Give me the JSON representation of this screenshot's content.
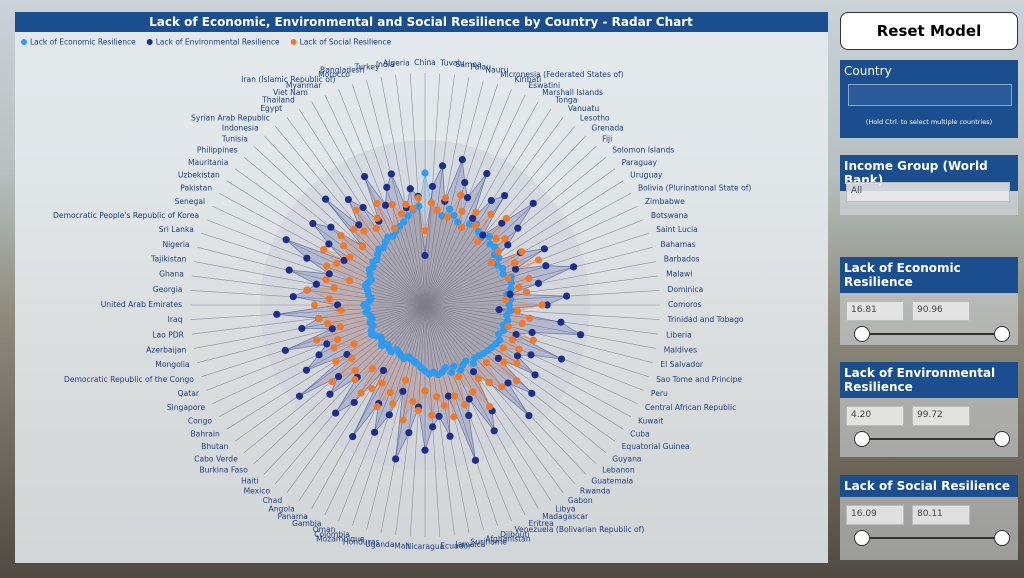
{
  "chart_data": {
    "type": "radar",
    "title": "Lack of Economic, Environmental and Social Resilience by Country - Radar Chart",
    "legend": "top-left",
    "rlim": [
      0,
      100
    ],
    "categories": [
      "China",
      "Tuvalu",
      "Samoa",
      "Palau",
      "Nauru",
      "Micronesia (Federated States of)",
      "Kiribati",
      "Eswatini",
      "Marshall Islands",
      "Tonga",
      "Vanuatu",
      "Lesotho",
      "Grenada",
      "Fiji",
      "Solomon Islands",
      "Paraguay",
      "Uruguay",
      "Bolivia (Plurinational State of)",
      "Zimbabwe",
      "Botswana",
      "Saint Lucia",
      "Bahamas",
      "Barbados",
      "Malawi",
      "Dominica",
      "Comoros",
      "Trinidad and Tobago",
      "Liberia",
      "Maldives",
      "El Salvador",
      "Sao Tome and Principe",
      "Peru",
      "Central African Republic",
      "Kuwait",
      "Cuba",
      "Equatorial Guinea",
      "Guyana",
      "Lebanon",
      "Guatemala",
      "Rwanda",
      "Gabon",
      "Libya",
      "Madagascar",
      "Eritrea",
      "Venezuela (Bolivarian Republic of)",
      "Djibouti",
      "Afghanistan",
      "Suriname",
      "Jamaica",
      "Ecuador",
      "Nicaragua",
      "Mali",
      "Uganda",
      "Honduras",
      "Mozambique",
      "Colombia",
      "Oman",
      "Gambia",
      "Panama",
      "Angola",
      "Chad",
      "Mexico",
      "Haiti",
      "Burkina Faso",
      "Cabo Verde",
      "Bhutan",
      "Bahrain",
      "Congo",
      "Singapore",
      "Qatar",
      "Democratic Republic of the Congo",
      "Mongolia",
      "Azerbaijan",
      "Lao PDR",
      "Iraq",
      "United Arab Emirates",
      "Georgia",
      "Ghana",
      "Tajikistan",
      "Nigeria",
      "Sri Lanka",
      "Democratic People's Republic of Korea",
      "Senegal",
      "Pakistan",
      "Uzbekistan",
      "Mauritania",
      "Philippines",
      "Tunisia",
      "Indonesia",
      "Syrian Arab Republic",
      "Egypt",
      "Thailand",
      "Viet Nam",
      "Myanmar",
      "Iran (Islamic Republic of)",
      "Morocco",
      "Bangladesh",
      "Turkey",
      "India",
      "Algeria"
    ],
    "series": [
      {
        "name": "Lack of Economic Resilience",
        "color": "#2e9bf0",
        "values": [
          80,
          62,
          58,
          55,
          60,
          57,
          54,
          52,
          56,
          58,
          55,
          53,
          57,
          54,
          55,
          52,
          53,
          50,
          52,
          51,
          55,
          54,
          53,
          50,
          52,
          51,
          52,
          50,
          51,
          49,
          50,
          48,
          50,
          49,
          48,
          47,
          46,
          45,
          44,
          46,
          42,
          43,
          45,
          41,
          44,
          40,
          42,
          43,
          41,
          42,
          40,
          38,
          36,
          35,
          34,
          33,
          35,
          34,
          33,
          32,
          35,
          34,
          33,
          36,
          34,
          33,
          35,
          37,
          36,
          34,
          35,
          33,
          34,
          36,
          35,
          37,
          34,
          33,
          35,
          36,
          38,
          37,
          36,
          38,
          40,
          39,
          41,
          40,
          42,
          44,
          43,
          45,
          47,
          46,
          48,
          50,
          52,
          55,
          58,
          60
        ]
      },
      {
        "name": "Lack of Environmental Resilience",
        "color": "#1c2e8c",
        "values": [
          30,
          72,
          85,
          64,
          91,
          78,
          70,
          88,
          60,
          75,
          82,
          55,
          68,
          90,
          73,
          62,
          48,
          66,
          80,
          59,
          77,
          93,
          70,
          52,
          86,
          74,
          45,
          83,
          96,
          67,
          58,
          89,
          71,
          64,
          79,
          55,
          84,
          69,
          92,
          61,
          50,
          76,
          87,
          63,
          72,
          99,
          57,
          81,
          68,
          74,
          88,
          62,
          78,
          95,
          54,
          70,
          83,
          66,
          91,
          47,
          73,
          85,
          60,
          79,
          68,
          94,
          56,
          82,
          71,
          64,
          89,
          58,
          76,
          65,
          90,
          53,
          80,
          72,
          67,
          85,
          61,
          77,
          93,
          56,
          69,
          84,
          74,
          52,
          88,
          63,
          79,
          70,
          58,
          86,
          65,
          75,
          82,
          60,
          71,
          66
        ]
      },
      {
        "name": "Lack of Social Resilience",
        "color": "#f07a2c",
        "values": [
          45,
          62,
          58,
          66,
          55,
          70,
          61,
          52,
          64,
          57,
          68,
          50,
          72,
          59,
          63,
          55,
          48,
          67,
          60,
          74,
          53,
          65,
          58,
          62,
          49,
          71,
          56,
          64,
          60,
          52,
          69,
          57,
          63,
          54,
          66,
          59,
          72,
          51,
          68,
          61,
          55,
          73,
          60,
          48,
          65,
          58,
          70,
          62,
          56,
          67,
          52,
          64,
          59,
          71,
          47,
          63,
          57,
          68,
          54,
          60,
          66,
          50,
          62,
          58,
          73,
          55,
          64,
          49,
          61,
          57,
          69,
          53,
          60,
          65,
          51,
          67,
          58,
          72,
          56,
          62,
          48,
          64,
          59,
          70,
          54,
          61,
          66,
          52,
          63,
          58,
          71,
          55,
          60,
          68,
          50,
          64,
          57,
          62,
          59,
          65
        ]
      }
    ]
  },
  "controls": {
    "reset_button": "Reset Model",
    "country": {
      "title": "Country",
      "hint": "(Hold Ctrl. to select multiple countries)"
    },
    "income_group": {
      "title": "Income Group (World Bank)",
      "selected": "All"
    },
    "sliders": [
      {
        "title": "Lack of Economic Resilience",
        "min": "16.81",
        "max": "90.96"
      },
      {
        "title": "Lack of Environmental Resilience",
        "min": "4.20",
        "max": "99.72"
      },
      {
        "title": "Lack of Social Resilience",
        "min": "16.09",
        "max": "80.11"
      }
    ]
  }
}
